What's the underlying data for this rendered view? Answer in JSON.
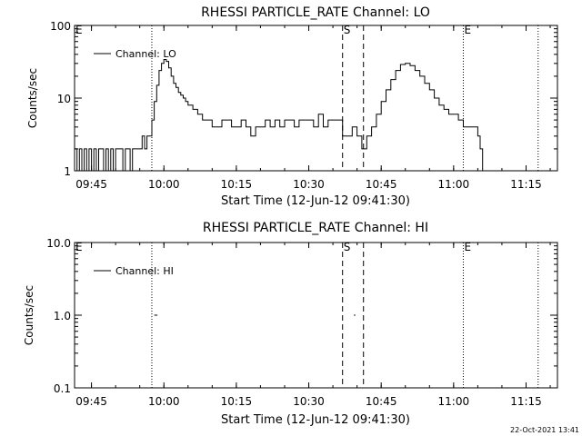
{
  "chart_data": [
    {
      "type": "line",
      "title": "RHESSI PARTICLE_RATE Channel: LO",
      "xlabel": "Start Time (12-Jun-12 09:41:30)",
      "ylabel": "Counts/sec",
      "yscale": "log",
      "ylim": [
        1,
        100
      ],
      "yticks": [
        1,
        10,
        100
      ],
      "ytick_labels": [
        "1",
        "10",
        "100"
      ],
      "xlim": [
        "09:41:30",
        "11:21:30"
      ],
      "xticks": [
        "09:45",
        "10:00",
        "10:15",
        "10:30",
        "10:45",
        "11:00",
        "11:15"
      ],
      "legend": {
        "placement": "top-left",
        "entries": [
          "Channel: LO"
        ]
      },
      "markers": [
        {
          "label": "E",
          "time": "09:41:30",
          "style": "dotted"
        },
        {
          "label": "",
          "time": "09:57:30",
          "style": "dotted"
        },
        {
          "label": "S",
          "time": "10:37:00",
          "style": "dashed"
        },
        {
          "label": "",
          "time": "10:41:20",
          "style": "dashed"
        },
        {
          "label": "E",
          "time": "11:02:00",
          "style": "dotted"
        },
        {
          "label": "",
          "time": "11:17:30",
          "style": "dotted"
        }
      ],
      "series": [
        {
          "name": "Channel: LO",
          "x": [
            "09:41:30",
            "09:42:00",
            "09:42:30",
            "09:43:00",
            "09:43:30",
            "09:44:00",
            "09:44:30",
            "09:45:00",
            "09:45:30",
            "09:46:00",
            "09:46:30",
            "09:47:00",
            "09:47:30",
            "09:48:00",
            "09:48:30",
            "09:49:00",
            "09:49:30",
            "09:50:00",
            "09:50:30",
            "09:51:00",
            "09:51:30",
            "09:52:00",
            "09:52:30",
            "09:53:00",
            "09:53:30",
            "09:54:00",
            "09:54:30",
            "09:55:00",
            "09:55:30",
            "09:56:00",
            "09:56:30",
            "09:57:00",
            "09:57:30",
            "09:58:00",
            "09:58:30",
            "09:59:00",
            "09:59:30",
            "10:00:00",
            "10:00:30",
            "10:01:00",
            "10:01:30",
            "10:02:00",
            "10:02:30",
            "10:03:00",
            "10:03:30",
            "10:04:00",
            "10:04:30",
            "10:05:00",
            "10:05:30",
            "10:06:00",
            "10:07:00",
            "10:08:00",
            "10:09:00",
            "10:10:00",
            "10:11:00",
            "10:12:00",
            "10:13:00",
            "10:14:00",
            "10:15:00",
            "10:16:00",
            "10:17:00",
            "10:18:00",
            "10:19:00",
            "10:20:00",
            "10:21:00",
            "10:22:00",
            "10:23:00",
            "10:24:00",
            "10:25:00",
            "10:26:00",
            "10:27:00",
            "10:28:00",
            "10:29:00",
            "10:30:00",
            "10:31:00",
            "10:32:00",
            "10:33:00",
            "10:34:00",
            "10:35:00",
            "10:36:00",
            "10:37:00",
            "10:38:00",
            "10:39:00",
            "10:40:00",
            "10:41:00",
            "10:42:00",
            "10:43:00",
            "10:44:00",
            "10:45:00",
            "10:46:00",
            "10:47:00",
            "10:48:00",
            "10:49:00",
            "10:50:00",
            "10:51:00",
            "10:52:00",
            "10:53:00",
            "10:54:00",
            "10:55:00",
            "10:56:00",
            "10:57:00",
            "10:58:00",
            "10:59:00",
            "11:00:00",
            "11:01:00",
            "11:02:00",
            "11:03:00",
            "11:04:00",
            "11:05:00",
            "11:05:30",
            "11:06:00"
          ],
          "y": [
            2,
            1,
            2,
            1,
            2,
            1,
            2,
            1,
            2,
            1,
            2,
            2,
            1,
            2,
            1,
            2,
            1,
            2,
            2,
            2,
            1,
            2,
            2,
            1,
            2,
            2,
            2,
            2,
            3,
            2,
            3,
            3,
            5,
            9,
            15,
            24,
            30,
            34,
            32,
            26,
            20,
            16,
            14,
            12,
            11,
            10,
            9,
            8,
            8,
            7,
            6,
            5,
            5,
            4,
            4,
            5,
            5,
            4,
            4,
            5,
            4,
            3,
            4,
            4,
            5,
            4,
            5,
            4,
            5,
            5,
            4,
            5,
            5,
            5,
            4,
            6,
            4,
            5,
            5,
            5,
            3,
            3,
            4,
            3,
            2,
            3,
            4,
            6,
            9,
            13,
            18,
            24,
            29,
            30,
            28,
            24,
            20,
            16,
            13,
            10,
            8,
            7,
            6,
            6,
            5,
            4,
            4,
            4,
            3,
            2,
            1
          ]
        }
      ]
    },
    {
      "type": "line",
      "title": "RHESSI PARTICLE_RATE Channel: HI",
      "xlabel": "Start Time (12-Jun-12 09:41:30)",
      "ylabel": "Counts/sec",
      "yscale": "log",
      "ylim": [
        0.1,
        10
      ],
      "yticks": [
        0.1,
        1,
        10
      ],
      "ytick_labels": [
        "0.1",
        "1.0",
        "10.0"
      ],
      "xlim": [
        "09:41:30",
        "11:21:30"
      ],
      "xticks": [
        "09:45",
        "10:00",
        "10:15",
        "10:30",
        "10:45",
        "11:00",
        "11:15"
      ],
      "legend": {
        "placement": "top-left",
        "entries": [
          "Channel: HI"
        ]
      },
      "markers": [
        {
          "label": "E",
          "time": "09:41:30",
          "style": "dotted"
        },
        {
          "label": "",
          "time": "09:57:30",
          "style": "dotted"
        },
        {
          "label": "S",
          "time": "10:37:00",
          "style": "dashed"
        },
        {
          "label": "",
          "time": "10:41:20",
          "style": "dashed"
        },
        {
          "label": "E",
          "time": "11:02:00",
          "style": "dotted"
        },
        {
          "label": "",
          "time": "11:17:30",
          "style": "dotted"
        }
      ],
      "series": [
        {
          "name": "Channel: HI",
          "segments": [
            {
              "x": [
                "09:58:00",
                "09:58:40"
              ],
              "y": [
                1,
                1
              ]
            },
            {
              "x": [
                "10:39:20",
                "10:39:40"
              ],
              "y": [
                1,
                1
              ]
            }
          ]
        }
      ]
    }
  ],
  "footer": {
    "timestamp": "22-Oct-2021 13:41"
  }
}
